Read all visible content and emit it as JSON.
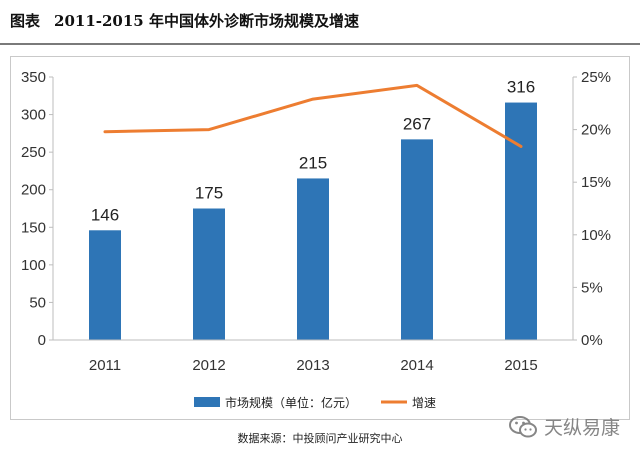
{
  "header": {
    "fig_no": "图表",
    "title": "2011-2015 年中国体外诊断市场规模及增速"
  },
  "chart_data": {
    "type": "bar",
    "categories": [
      "2011",
      "2012",
      "2013",
      "2014",
      "2015"
    ],
    "series": [
      {
        "name": "市场规模（单位：亿元）",
        "type": "bar",
        "axis": "left",
        "values": [
          146,
          175,
          215,
          267,
          316
        ],
        "color": "#2e75b6"
      },
      {
        "name": "增速",
        "type": "line",
        "axis": "right",
        "values": [
          19.8,
          20.0,
          22.9,
          24.2,
          18.4
        ],
        "color": "#ed7d31"
      }
    ],
    "y_left": {
      "ylim": [
        0,
        350
      ],
      "ticks": [
        "0",
        "50",
        "100",
        "150",
        "200",
        "250",
        "300",
        "350"
      ]
    },
    "y_right": {
      "ylim": [
        0,
        25
      ],
      "ticks": [
        "0%",
        "5%",
        "10%",
        "15%",
        "20%",
        "25%"
      ]
    },
    "data_labels": [
      "146",
      "175",
      "215",
      "267",
      "316"
    ],
    "legend": {
      "position": "bottom"
    },
    "grid": false
  },
  "footer": {
    "source": "数据来源：中投顾问产业研究中心",
    "watermark": "天纵易康"
  }
}
